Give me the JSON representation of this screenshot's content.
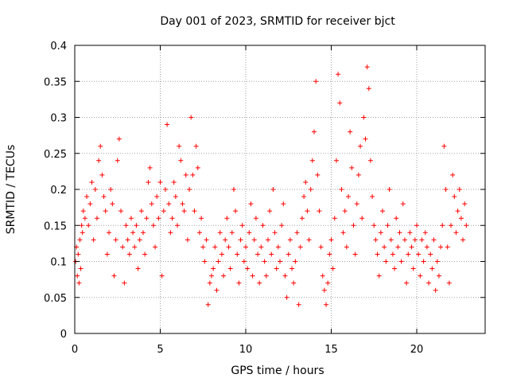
{
  "chart_data": {
    "type": "scatter",
    "title": "Day 001 of 2023, SRMTID for receiver bjct",
    "xlabel": "GPS time / hours",
    "ylabel": "SRMTID / TECUs",
    "xlim": [
      0,
      24
    ],
    "ylim": [
      0,
      0.4
    ],
    "xticks": [
      0,
      5,
      10,
      15,
      20
    ],
    "xtick_labels": [
      "0",
      "5",
      "10",
      "15",
      "20"
    ],
    "yticks": [
      0,
      0.05,
      0.1,
      0.15,
      0.2,
      0.25,
      0.3,
      0.35,
      0.4
    ],
    "ytick_labels": [
      "0",
      "0.05",
      "0.1",
      "0.15",
      "0.2",
      "0.25",
      "0.3",
      "0.35",
      "0.4"
    ],
    "grid": true,
    "marker": "+",
    "colors": {
      "series": "#ff0000",
      "grid": "#a0a0a0",
      "axis": "#000000"
    },
    "series": [
      {
        "points": [
          [
            0.05,
            0.1
          ],
          [
            0.1,
            0.12
          ],
          [
            0.15,
            0.08
          ],
          [
            0.2,
            0.11
          ],
          [
            0.25,
            0.07
          ],
          [
            0.3,
            0.13
          ],
          [
            0.35,
            0.09
          ],
          [
            0.4,
            0.15
          ],
          [
            0.45,
            0.14
          ],
          [
            0.5,
            0.17
          ],
          [
            0.6,
            0.16
          ],
          [
            0.7,
            0.19
          ],
          [
            0.8,
            0.15
          ],
          [
            0.9,
            0.18
          ],
          [
            1.0,
            0.21
          ],
          [
            1.1,
            0.13
          ],
          [
            1.2,
            0.2
          ],
          [
            1.3,
            0.16
          ],
          [
            1.4,
            0.24
          ],
          [
            1.5,
            0.26
          ],
          [
            1.6,
            0.22
          ],
          [
            1.7,
            0.19
          ],
          [
            1.8,
            0.17
          ],
          [
            1.9,
            0.11
          ],
          [
            2.0,
            0.14
          ],
          [
            2.1,
            0.2
          ],
          [
            2.2,
            0.18
          ],
          [
            2.3,
            0.08
          ],
          [
            2.4,
            0.13
          ],
          [
            2.5,
            0.24
          ],
          [
            2.6,
            0.27
          ],
          [
            2.7,
            0.17
          ],
          [
            2.8,
            0.12
          ],
          [
            2.9,
            0.07
          ],
          [
            3.0,
            0.15
          ],
          [
            3.1,
            0.13
          ],
          [
            3.2,
            0.11
          ],
          [
            3.3,
            0.16
          ],
          [
            3.4,
            0.14
          ],
          [
            3.5,
            0.12
          ],
          [
            3.6,
            0.15
          ],
          [
            3.7,
            0.09
          ],
          [
            3.8,
            0.13
          ],
          [
            3.9,
            0.17
          ],
          [
            4.0,
            0.14
          ],
          [
            4.1,
            0.11
          ],
          [
            4.2,
            0.16
          ],
          [
            4.3,
            0.21
          ],
          [
            4.4,
            0.23
          ],
          [
            4.5,
            0.18
          ],
          [
            4.6,
            0.15
          ],
          [
            4.7,
            0.12
          ],
          [
            4.8,
            0.19
          ],
          [
            4.9,
            0.16
          ],
          [
            5.0,
            0.21
          ],
          [
            5.1,
            0.08
          ],
          [
            5.2,
            0.17
          ],
          [
            5.3,
            0.2
          ],
          [
            5.4,
            0.29
          ],
          [
            5.5,
            0.18
          ],
          [
            5.6,
            0.14
          ],
          [
            5.7,
            0.16
          ],
          [
            5.8,
            0.21
          ],
          [
            5.9,
            0.19
          ],
          [
            6.0,
            0.15
          ],
          [
            6.1,
            0.26
          ],
          [
            6.2,
            0.24
          ],
          [
            6.3,
            0.18
          ],
          [
            6.4,
            0.17
          ],
          [
            6.5,
            0.22
          ],
          [
            6.6,
            0.13
          ],
          [
            6.7,
            0.2
          ],
          [
            6.8,
            0.3
          ],
          [
            6.9,
            0.22
          ],
          [
            7.0,
            0.17
          ],
          [
            7.1,
            0.26
          ],
          [
            7.2,
            0.23
          ],
          [
            7.3,
            0.14
          ],
          [
            7.4,
            0.16
          ],
          [
            7.5,
            0.12
          ],
          [
            7.6,
            0.1
          ],
          [
            7.7,
            0.13
          ],
          [
            7.8,
            0.04
          ],
          [
            7.9,
            0.07
          ],
          [
            8.0,
            0.08
          ],
          [
            8.1,
            0.09
          ],
          [
            8.2,
            0.12
          ],
          [
            8.3,
            0.06
          ],
          [
            8.4,
            0.1
          ],
          [
            8.5,
            0.14
          ],
          [
            8.6,
            0.11
          ],
          [
            8.7,
            0.08
          ],
          [
            8.8,
            0.13
          ],
          [
            8.9,
            0.16
          ],
          [
            9.0,
            0.12
          ],
          [
            9.1,
            0.09
          ],
          [
            9.2,
            0.14
          ],
          [
            9.3,
            0.2
          ],
          [
            9.4,
            0.17
          ],
          [
            9.5,
            0.11
          ],
          [
            9.6,
            0.07
          ],
          [
            9.7,
            0.13
          ],
          [
            9.8,
            0.15
          ],
          [
            9.9,
            0.1
          ],
          [
            10.0,
            0.12
          ],
          [
            10.1,
            0.09
          ],
          [
            10.2,
            0.14
          ],
          [
            10.3,
            0.18
          ],
          [
            10.4,
            0.08
          ],
          [
            10.5,
            0.13
          ],
          [
            10.6,
            0.16
          ],
          [
            10.7,
            0.11
          ],
          [
            10.8,
            0.07
          ],
          [
            10.9,
            0.12
          ],
          [
            11.0,
            0.15
          ],
          [
            11.1,
            0.1
          ],
          [
            11.2,
            0.08
          ],
          [
            11.3,
            0.13
          ],
          [
            11.4,
            0.17
          ],
          [
            11.5,
            0.11
          ],
          [
            11.6,
            0.2
          ],
          [
            11.7,
            0.14
          ],
          [
            11.8,
            0.09
          ],
          [
            11.9,
            0.12
          ],
          [
            12.0,
            0.1
          ],
          [
            12.1,
            0.15
          ],
          [
            12.2,
            0.18
          ],
          [
            12.3,
            0.08
          ],
          [
            12.4,
            0.05
          ],
          [
            12.5,
            0.11
          ],
          [
            12.6,
            0.13
          ],
          [
            12.7,
            0.09
          ],
          [
            12.8,
            0.07
          ],
          [
            12.9,
            0.1
          ],
          [
            13.0,
            0.14
          ],
          [
            13.1,
            0.04
          ],
          [
            13.2,
            0.12
          ],
          [
            13.3,
            0.16
          ],
          [
            13.4,
            0.19
          ],
          [
            13.5,
            0.21
          ],
          [
            13.6,
            0.17
          ],
          [
            13.7,
            0.13
          ],
          [
            13.8,
            0.2
          ],
          [
            13.9,
            0.24
          ],
          [
            14.0,
            0.28
          ],
          [
            14.1,
            0.35
          ],
          [
            14.2,
            0.22
          ],
          [
            14.3,
            0.17
          ],
          [
            14.4,
            0.12
          ],
          [
            14.5,
            0.08
          ],
          [
            14.6,
            0.06
          ],
          [
            14.7,
            0.04
          ],
          [
            14.8,
            0.07
          ],
          [
            14.9,
            0.11
          ],
          [
            15.0,
            0.13
          ],
          [
            15.1,
            0.09
          ],
          [
            15.2,
            0.16
          ],
          [
            15.3,
            0.24
          ],
          [
            15.4,
            0.36
          ],
          [
            15.5,
            0.32
          ],
          [
            15.6,
            0.2
          ],
          [
            15.7,
            0.14
          ],
          [
            15.8,
            0.17
          ],
          [
            15.9,
            0.12
          ],
          [
            16.0,
            0.19
          ],
          [
            16.1,
            0.28
          ],
          [
            16.2,
            0.23
          ],
          [
            16.3,
            0.15
          ],
          [
            16.4,
            0.11
          ],
          [
            16.5,
            0.18
          ],
          [
            16.6,
            0.22
          ],
          [
            16.7,
            0.26
          ],
          [
            16.8,
            0.16
          ],
          [
            16.9,
            0.3
          ],
          [
            17.0,
            0.27
          ],
          [
            17.1,
            0.37
          ],
          [
            17.2,
            0.34
          ],
          [
            17.3,
            0.24
          ],
          [
            17.4,
            0.19
          ],
          [
            17.5,
            0.15
          ],
          [
            17.6,
            0.13
          ],
          [
            17.7,
            0.11
          ],
          [
            17.8,
            0.08
          ],
          [
            17.9,
            0.14
          ],
          [
            18.0,
            0.17
          ],
          [
            18.1,
            0.12
          ],
          [
            18.2,
            0.1
          ],
          [
            18.3,
            0.15
          ],
          [
            18.4,
            0.2
          ],
          [
            18.5,
            0.13
          ],
          [
            18.6,
            0.11
          ],
          [
            18.7,
            0.09
          ],
          [
            18.8,
            0.16
          ],
          [
            18.9,
            0.12
          ],
          [
            19.0,
            0.14
          ],
          [
            19.1,
            0.1
          ],
          [
            19.2,
            0.18
          ],
          [
            19.3,
            0.13
          ],
          [
            19.4,
            0.07
          ],
          [
            19.5,
            0.11
          ],
          [
            19.6,
            0.14
          ],
          [
            19.7,
            0.12
          ],
          [
            19.8,
            0.09
          ],
          [
            19.9,
            0.13
          ],
          [
            20.0,
            0.15
          ],
          [
            20.1,
            0.11
          ],
          [
            20.2,
            0.08
          ],
          [
            20.3,
            0.13
          ],
          [
            20.4,
            0.1
          ],
          [
            20.5,
            0.14
          ],
          [
            20.6,
            0.12
          ],
          [
            20.7,
            0.07
          ],
          [
            20.8,
            0.11
          ],
          [
            20.9,
            0.09
          ],
          [
            21.0,
            0.13
          ],
          [
            21.1,
            0.06
          ],
          [
            21.2,
            0.1
          ],
          [
            21.3,
            0.08
          ],
          [
            21.4,
            0.12
          ],
          [
            21.5,
            0.15
          ],
          [
            21.6,
            0.26
          ],
          [
            21.7,
            0.2
          ],
          [
            21.8,
            0.12
          ],
          [
            21.9,
            0.07
          ],
          [
            22.0,
            0.15
          ],
          [
            22.1,
            0.22
          ],
          [
            22.2,
            0.19
          ],
          [
            22.3,
            0.14
          ],
          [
            22.4,
            0.17
          ],
          [
            22.5,
            0.2
          ],
          [
            22.6,
            0.16
          ],
          [
            22.7,
            0.13
          ],
          [
            22.8,
            0.18
          ],
          [
            22.9,
            0.15
          ]
        ]
      }
    ]
  }
}
